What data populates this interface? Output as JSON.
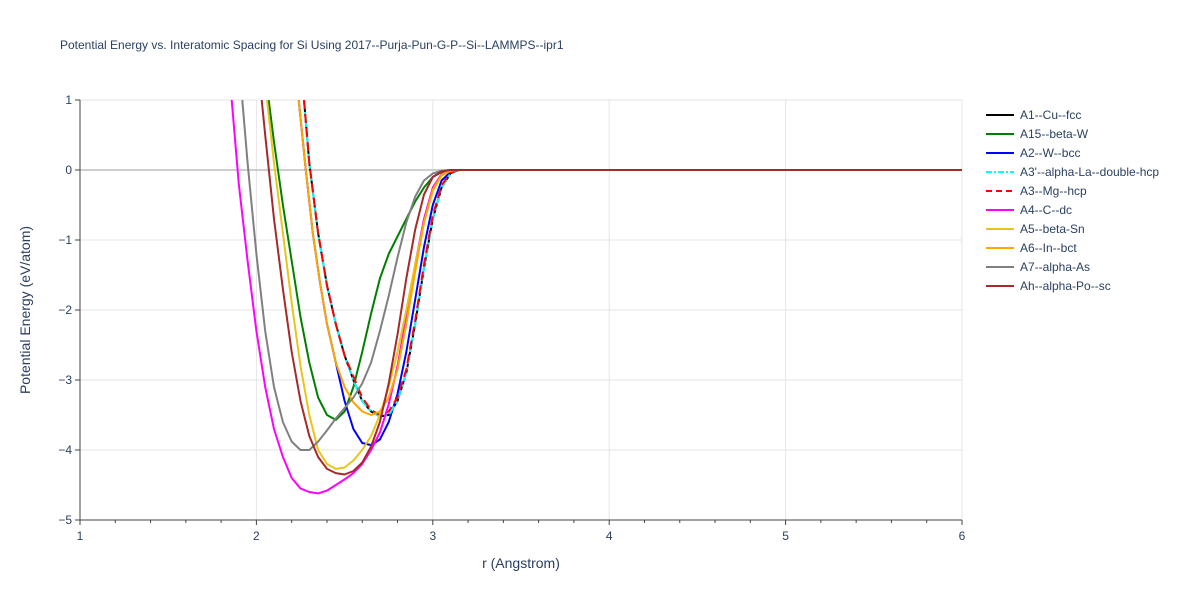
{
  "chart_data": {
    "type": "line",
    "title": "Potential Energy vs. Interatomic Spacing for Si Using 2017--Purja-Pun-G-P--Si--LAMMPS--ipr1",
    "xlabel": "r (Angstrom)",
    "ylabel": "Potential Energy (eV/atom)",
    "xlim": [
      1,
      6
    ],
    "ylim": [
      -5,
      1
    ],
    "xticks": [
      1,
      2,
      3,
      4,
      5,
      6
    ],
    "yticks": [
      1,
      0,
      -1,
      -2,
      -3,
      -4,
      -5
    ],
    "ytick_labels": [
      "1",
      "0",
      "−1",
      "−2",
      "−3",
      "−4",
      "−5"
    ],
    "grid": true,
    "legend_position": "right",
    "series": [
      {
        "name": "A1--Cu--fcc",
        "color": "#000000",
        "dash": "solid",
        "x": [
          2.27,
          2.3,
          2.35,
          2.4,
          2.45,
          2.5,
          2.55,
          2.6,
          2.65,
          2.7,
          2.75,
          2.8,
          2.85,
          2.9,
          2.95,
          3.0,
          3.05,
          3.1,
          3.15,
          3.2,
          6.0
        ],
        "y": [
          1.0,
          0.1,
          -0.9,
          -1.65,
          -2.2,
          -2.65,
          -3.0,
          -3.3,
          -3.45,
          -3.52,
          -3.5,
          -3.3,
          -2.9,
          -2.2,
          -1.4,
          -0.7,
          -0.25,
          -0.05,
          0.0,
          0.0,
          0.0
        ]
      },
      {
        "name": "A15--beta-W",
        "color": "#008000",
        "dash": "solid",
        "x": [
          2.07,
          2.1,
          2.15,
          2.2,
          2.25,
          2.3,
          2.35,
          2.4,
          2.45,
          2.5,
          2.55,
          2.6,
          2.65,
          2.7,
          2.75,
          2.8,
          2.85,
          2.9,
          2.95,
          3.0,
          3.05,
          3.1,
          3.15,
          6.0
        ],
        "y": [
          1.0,
          0.4,
          -0.5,
          -1.3,
          -2.1,
          -2.75,
          -3.25,
          -3.5,
          -3.57,
          -3.45,
          -3.1,
          -2.6,
          -2.05,
          -1.55,
          -1.2,
          -0.95,
          -0.7,
          -0.45,
          -0.25,
          -0.1,
          -0.03,
          0.0,
          0.0,
          0.0
        ]
      },
      {
        "name": "A2--W--bcc",
        "color": "#0000ff",
        "dash": "solid",
        "x": [
          2.24,
          2.28,
          2.32,
          2.36,
          2.4,
          2.45,
          2.5,
          2.55,
          2.6,
          2.65,
          2.7,
          2.75,
          2.8,
          2.85,
          2.9,
          2.95,
          3.0,
          3.05,
          3.1,
          3.15,
          6.0
        ],
        "y": [
          1.0,
          0.0,
          -0.9,
          -1.6,
          -2.2,
          -2.75,
          -3.3,
          -3.7,
          -3.9,
          -3.93,
          -3.85,
          -3.6,
          -3.2,
          -2.6,
          -1.85,
          -1.1,
          -0.5,
          -0.15,
          -0.03,
          0.0,
          0.0
        ]
      },
      {
        "name": "A3'--alpha-La--double-hcp",
        "color": "#00ffff",
        "dash": "dashdot",
        "x": [
          2.27,
          2.3,
          2.35,
          2.4,
          2.45,
          2.5,
          2.55,
          2.6,
          2.65,
          2.7,
          2.75,
          2.8,
          2.85,
          2.9,
          2.95,
          3.0,
          3.05,
          3.1,
          3.15,
          3.2,
          6.0
        ],
        "y": [
          1.0,
          0.1,
          -0.9,
          -1.65,
          -2.2,
          -2.65,
          -3.0,
          -3.3,
          -3.45,
          -3.52,
          -3.5,
          -3.3,
          -2.9,
          -2.2,
          -1.4,
          -0.7,
          -0.25,
          -0.05,
          0.0,
          0.0,
          0.0
        ]
      },
      {
        "name": "A3--Mg--hcp",
        "color": "#ff0000",
        "dash": "dash",
        "x": [
          2.27,
          2.3,
          2.35,
          2.4,
          2.45,
          2.5,
          2.55,
          2.6,
          2.65,
          2.7,
          2.75,
          2.8,
          2.85,
          2.9,
          2.95,
          3.0,
          3.05,
          3.1,
          3.15,
          3.2,
          6.0
        ],
        "y": [
          1.0,
          0.1,
          -0.9,
          -1.65,
          -2.2,
          -2.65,
          -2.95,
          -3.25,
          -3.43,
          -3.5,
          -3.45,
          -3.25,
          -2.85,
          -2.15,
          -1.35,
          -0.65,
          -0.22,
          -0.04,
          0.0,
          0.0,
          0.0
        ]
      },
      {
        "name": "A4--C--dc",
        "color": "#ff00ff",
        "dash": "solid",
        "x": [
          1.86,
          1.9,
          1.95,
          2.0,
          2.05,
          2.1,
          2.15,
          2.2,
          2.25,
          2.3,
          2.35,
          2.4,
          2.45,
          2.5,
          2.55,
          2.6,
          2.65,
          2.7,
          2.75,
          2.8,
          2.85,
          2.9,
          2.95,
          3.0,
          3.05,
          3.1,
          3.15,
          6.0
        ],
        "y": [
          1.0,
          -0.2,
          -1.3,
          -2.3,
          -3.1,
          -3.7,
          -4.1,
          -4.4,
          -4.55,
          -4.6,
          -4.62,
          -4.58,
          -4.5,
          -4.42,
          -4.33,
          -4.2,
          -4.0,
          -3.75,
          -3.35,
          -2.8,
          -2.1,
          -1.35,
          -0.7,
          -0.25,
          -0.06,
          0.0,
          0.0,
          0.0
        ]
      },
      {
        "name": "A5--beta-Sn",
        "color": "#e6c619",
        "dash": "solid",
        "x": [
          2.06,
          2.1,
          2.15,
          2.2,
          2.25,
          2.3,
          2.35,
          2.4,
          2.45,
          2.5,
          2.55,
          2.6,
          2.65,
          2.7,
          2.75,
          2.8,
          2.85,
          2.9,
          2.95,
          3.0,
          3.05,
          3.1,
          3.15,
          6.0
        ],
        "y": [
          1.0,
          0.1,
          -0.9,
          -1.9,
          -2.8,
          -3.5,
          -4.0,
          -4.2,
          -4.27,
          -4.25,
          -4.15,
          -4.0,
          -3.8,
          -3.5,
          -3.1,
          -2.6,
          -2.0,
          -1.35,
          -0.75,
          -0.3,
          -0.08,
          -0.01,
          0.0,
          0.0
        ]
      },
      {
        "name": "A6--In--bct",
        "color": "#ffa500",
        "dash": "solid",
        "x": [
          2.24,
          2.28,
          2.32,
          2.36,
          2.4,
          2.45,
          2.5,
          2.55,
          2.6,
          2.65,
          2.7,
          2.75,
          2.8,
          2.85,
          2.9,
          2.95,
          3.0,
          3.05,
          3.1,
          3.15,
          6.0
        ],
        "y": [
          1.0,
          0.0,
          -0.9,
          -1.6,
          -2.2,
          -2.75,
          -3.1,
          -3.32,
          -3.45,
          -3.5,
          -3.45,
          -3.25,
          -2.85,
          -2.2,
          -1.45,
          -0.75,
          -0.28,
          -0.07,
          -0.01,
          0.0,
          0.0
        ]
      },
      {
        "name": "A7--alpha-As",
        "color": "#808080",
        "dash": "solid",
        "x": [
          1.92,
          1.95,
          2.0,
          2.05,
          2.1,
          2.15,
          2.2,
          2.25,
          2.3,
          2.35,
          2.4,
          2.45,
          2.5,
          2.55,
          2.6,
          2.65,
          2.7,
          2.75,
          2.8,
          2.85,
          2.9,
          2.95,
          3.0,
          3.05,
          3.1,
          3.15,
          6.0
        ],
        "y": [
          1.0,
          0.1,
          -1.2,
          -2.3,
          -3.1,
          -3.6,
          -3.88,
          -4.0,
          -4.0,
          -3.88,
          -3.72,
          -3.55,
          -3.4,
          -3.25,
          -3.05,
          -2.75,
          -2.3,
          -1.8,
          -1.25,
          -0.75,
          -0.38,
          -0.15,
          -0.05,
          -0.01,
          0.0,
          0.0,
          0.0
        ]
      },
      {
        "name": "Ah--alpha-Po--sc",
        "color": "#a52a2a",
        "dash": "solid",
        "x": [
          2.03,
          2.05,
          2.1,
          2.15,
          2.2,
          2.25,
          2.3,
          2.35,
          2.4,
          2.45,
          2.5,
          2.55,
          2.6,
          2.65,
          2.7,
          2.75,
          2.8,
          2.85,
          2.9,
          2.95,
          3.0,
          3.05,
          3.1,
          3.15,
          3.2,
          6.0
        ],
        "y": [
          1.0,
          0.5,
          -0.7,
          -1.7,
          -2.6,
          -3.3,
          -3.8,
          -4.1,
          -4.27,
          -4.33,
          -4.35,
          -4.3,
          -4.18,
          -3.95,
          -3.6,
          -3.05,
          -2.35,
          -1.55,
          -0.85,
          -0.35,
          -0.1,
          -0.02,
          0.0,
          0.0,
          0.0,
          0.0
        ]
      }
    ]
  }
}
